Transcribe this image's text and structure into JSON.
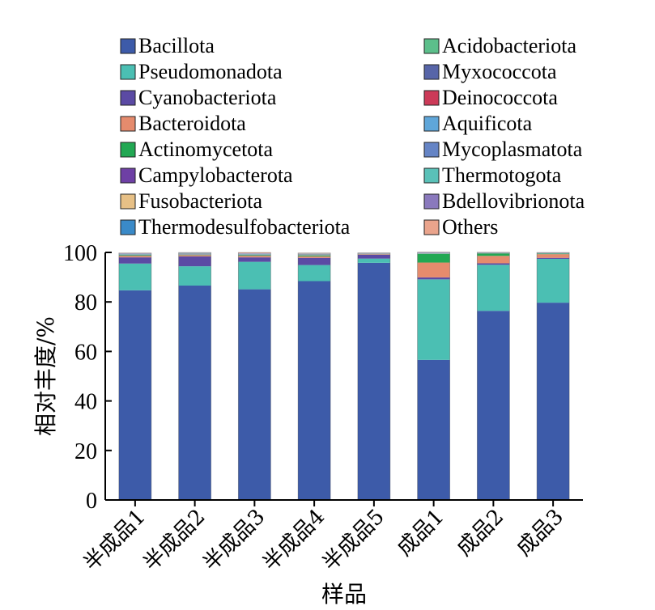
{
  "chart_data": {
    "type": "bar",
    "stacked": true,
    "title": "",
    "xlabel": "样品",
    "ylabel": "相对丰度/%",
    "ylim": [
      0,
      100
    ],
    "yticks": [
      0,
      20,
      40,
      60,
      80,
      100
    ],
    "grid": false,
    "legend_position": "top",
    "categories": [
      "半成品1",
      "半成品2",
      "半成品3",
      "半成品4",
      "半成品5",
      "成品1",
      "成品2",
      "成品3"
    ],
    "series": [
      {
        "name": "Bacillota",
        "color": "#3d5ba9",
        "values": [
          84.7,
          86.6,
          85.1,
          88.4,
          95.8,
          56.6,
          76.4,
          79.7
        ]
      },
      {
        "name": "Pseudomonadota",
        "color": "#4bbfb3",
        "values": [
          10.8,
          7.8,
          11.1,
          6.5,
          1.7,
          32.5,
          18.6,
          17.7
        ]
      },
      {
        "name": "Cyanobacteriota",
        "color": "#5b4aa4",
        "values": [
          2.5,
          4.0,
          1.8,
          2.9,
          1.6,
          0.8,
          0.6,
          0.4
        ]
      },
      {
        "name": "Bacteroidota",
        "color": "#e58b6d",
        "values": [
          0.6,
          0.5,
          0.6,
          0.6,
          0.2,
          6.0,
          3.0,
          1.5
        ]
      },
      {
        "name": "Actinomycetota",
        "color": "#22a853",
        "values": [
          0.3,
          0.2,
          0.3,
          0.4,
          0.1,
          3.5,
          1.0,
          0.2
        ]
      },
      {
        "name": "Campylobacterota",
        "color": "#6e40a5",
        "values": [
          0.1,
          0.1,
          0.1,
          0.1,
          0.05,
          0.05,
          0.05,
          0.05
        ]
      },
      {
        "name": "Fusobacteriota",
        "color": "#e7c086",
        "values": [
          0.1,
          0.1,
          0.1,
          0.1,
          0.05,
          0.05,
          0.05,
          0.05
        ]
      },
      {
        "name": "Thermodesulfobacteriota",
        "color": "#3a8ac8",
        "values": [
          0.1,
          0.1,
          0.1,
          0.1,
          0.05,
          0.05,
          0.05,
          0.05
        ]
      },
      {
        "name": "Acidobacteriota",
        "color": "#5cbf8b",
        "values": [
          0.1,
          0.1,
          0.1,
          0.1,
          0.05,
          0.1,
          0.05,
          0.05
        ]
      },
      {
        "name": "Myxococcota",
        "color": "#5765a8",
        "values": [
          0.1,
          0.1,
          0.1,
          0.1,
          0.05,
          0.1,
          0.05,
          0.05
        ]
      },
      {
        "name": "Deinococcota",
        "color": "#cc3a58",
        "values": [
          0.05,
          0.05,
          0.05,
          0.05,
          0.02,
          0.05,
          0.02,
          0.02
        ]
      },
      {
        "name": "Aquificota",
        "color": "#5fa6d9",
        "values": [
          0.05,
          0.05,
          0.05,
          0.05,
          0.02,
          0.05,
          0.02,
          0.02
        ]
      },
      {
        "name": "Mycoplasmatota",
        "color": "#6584c5",
        "values": [
          0.05,
          0.05,
          0.05,
          0.05,
          0.02,
          0.05,
          0.02,
          0.02
        ]
      },
      {
        "name": "Thermotogota",
        "color": "#5ac1b8",
        "values": [
          0.05,
          0.05,
          0.05,
          0.05,
          0.02,
          0.05,
          0.02,
          0.02
        ]
      },
      {
        "name": "Bdellovibrionota",
        "color": "#8a79bd",
        "values": [
          0.05,
          0.05,
          0.05,
          0.05,
          0.02,
          0.05,
          0.02,
          0.02
        ]
      },
      {
        "name": "Others",
        "color": "#eaa48c",
        "values": [
          0.1,
          0.1,
          0.3,
          0.2,
          0.05,
          0.1,
          0.1,
          0.1
        ]
      }
    ]
  }
}
